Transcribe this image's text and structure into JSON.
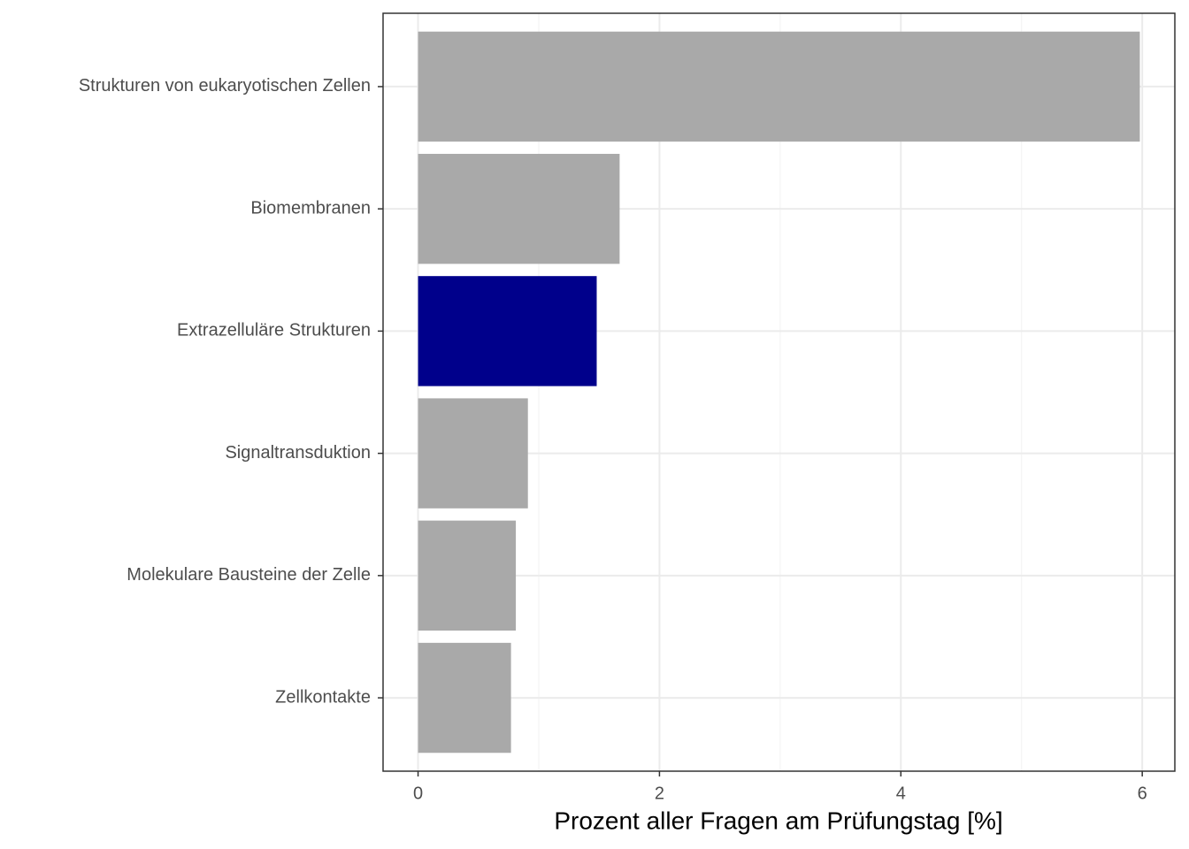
{
  "chart_data": {
    "type": "barh",
    "xlabel": "Prozent aller Fragen am Prüfungstag [%]",
    "categories": [
      "Strukturen von eukaryotischen Zellen",
      "Biomembranen",
      "Extrazelluläre Strukturen",
      "Signaltransduktion",
      "Molekulare Bausteine der Zelle",
      "Zellkontakte"
    ],
    "values": [
      5.98,
      1.67,
      1.48,
      0.91,
      0.81,
      0.77
    ],
    "colors": [
      "#a9a9a9",
      "#a9a9a9",
      "#00008b",
      "#a9a9a9",
      "#a9a9a9",
      "#a9a9a9"
    ],
    "xlim": [
      -0.29,
      6.27
    ],
    "xticks": [
      0,
      2,
      4,
      6
    ],
    "x_minor_ticks": [
      1,
      3,
      5
    ],
    "grid": true
  }
}
